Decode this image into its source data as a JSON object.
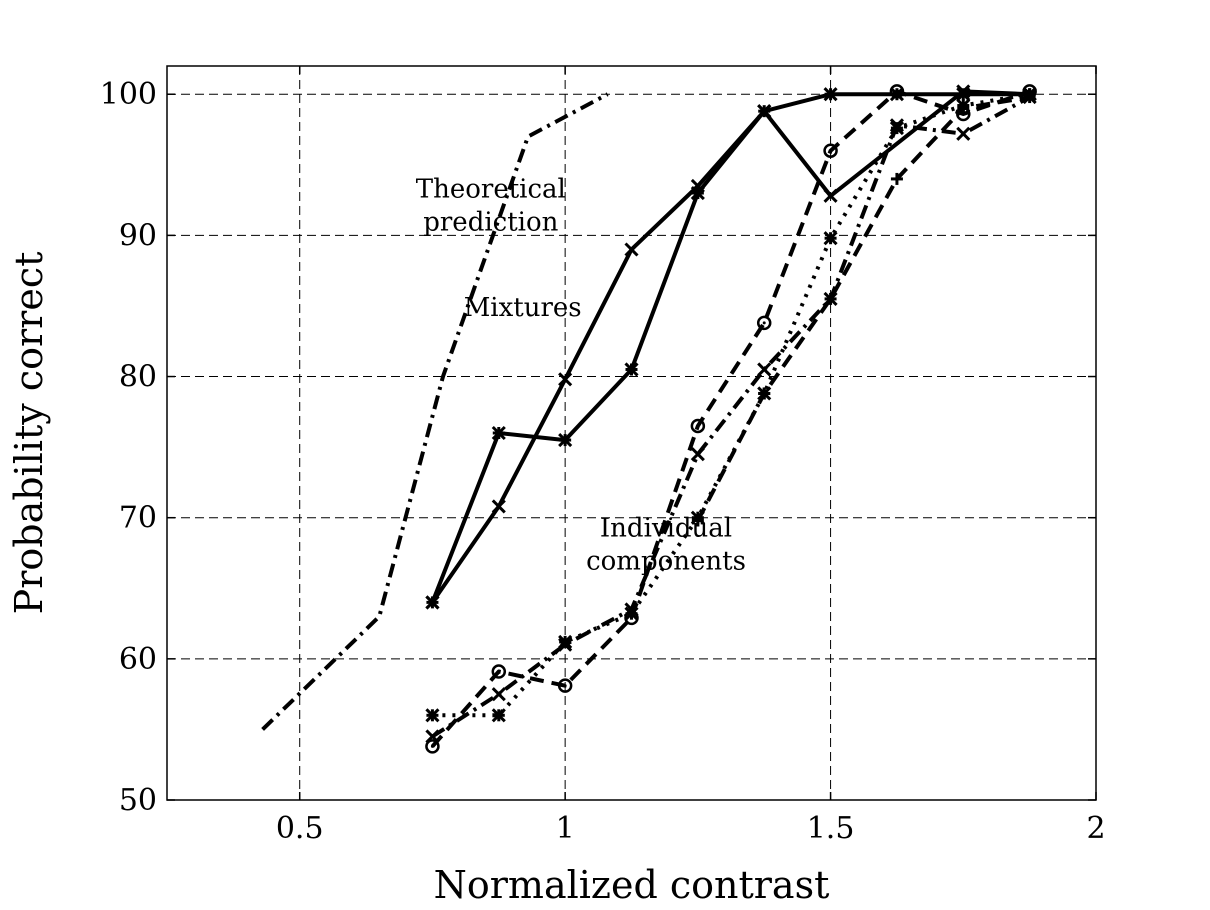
{
  "chart_data": {
    "type": "line",
    "title": "",
    "xlabel": "Normalized contrast",
    "ylabel": "Probability correct",
    "xlim": [
      0.25,
      2.0
    ],
    "ylim": [
      50,
      102
    ],
    "xticks": [
      0.5,
      1,
      1.5,
      2
    ],
    "yticks": [
      50,
      60,
      70,
      80,
      90,
      100
    ],
    "xtick_labels": [
      "0.5",
      "1",
      "1.5",
      "2"
    ],
    "ytick_labels": [
      "50",
      "60",
      "70",
      "80",
      "90",
      "100"
    ],
    "grid": true,
    "annotations": [
      {
        "lines": [
          "Theoretical",
          "prediction"
        ],
        "x": 0.86,
        "y": 91.5
      },
      {
        "lines": [
          "Mixtures"
        ],
        "x": 0.92,
        "y": 84.3
      },
      {
        "lines": [
          "Individual",
          "components"
        ],
        "x": 1.19,
        "y": 67.5
      }
    ],
    "series": [
      {
        "style": "dashdot",
        "marker": "none",
        "x": [
          0.43,
          0.65,
          0.77,
          0.93,
          1.08
        ],
        "y": [
          55,
          63,
          80,
          97,
          100
        ]
      },
      {
        "style": "solid",
        "marker": "asterisk",
        "x": [
          0.75,
          0.875,
          1.0,
          1.125,
          1.25,
          1.375,
          1.5,
          1.625,
          1.75,
          1.875
        ],
        "y": [
          64,
          76,
          75.5,
          80.5,
          93,
          98.8,
          100,
          100,
          100,
          100
        ]
      },
      {
        "style": "solid",
        "marker": "x",
        "x": [
          0.75,
          0.875,
          1.0,
          1.125,
          1.25,
          1.375,
          1.5,
          1.75,
          1.875
        ],
        "y": [
          64,
          70.8,
          79.8,
          89,
          93.5,
          98.8,
          92.8,
          100.2,
          100
        ]
      },
      {
        "style": "dashed",
        "marker": "circle",
        "x": [
          0.75,
          0.875,
          1.0,
          1.125,
          1.25,
          1.375,
          1.5,
          1.625,
          1.75,
          1.875
        ],
        "y": [
          53.8,
          59.1,
          58.1,
          62.9,
          76.5,
          83.8,
          96,
          100.2,
          98.6,
          100.2
        ]
      },
      {
        "style": "dotted",
        "marker": "asterisk",
        "x": [
          0.75,
          0.875,
          1.0,
          1.125,
          1.25,
          1.375,
          1.5,
          1.625,
          1.75,
          1.875
        ],
        "y": [
          56,
          56,
          61.2,
          63.2,
          70,
          78.8,
          89.8,
          97.6,
          99.2,
          100
        ]
      },
      {
        "style": "dashdot",
        "marker": "x",
        "x": [
          0.75,
          0.875,
          1.0,
          1.125,
          1.25,
          1.375,
          1.5,
          1.625,
          1.75,
          1.875
        ],
        "y": [
          54.5,
          57.5,
          61,
          63.5,
          74.5,
          80.5,
          85.5,
          97.8,
          97.2,
          99.8
        ]
      },
      {
        "style": "dashed",
        "marker": "plus",
        "x": [
          1.25,
          1.375,
          1.5,
          1.625,
          1.75,
          1.875
        ],
        "y": [
          69.8,
          78.8,
          85.5,
          94,
          99,
          99.8
        ]
      }
    ]
  }
}
